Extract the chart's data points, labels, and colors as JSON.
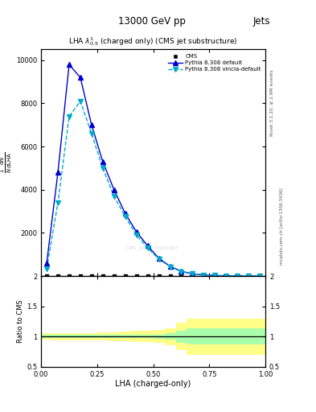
{
  "title_top": "13000 GeV pp",
  "title_right": "Jets",
  "plot_title": "LHA $\\lambda^{1}_{0.5}$ (charged only) (CMS jet substructure)",
  "xlabel": "LHA (charged-only)",
  "ylabel": "$\\frac{1}{N}\\frac{dN}{d\\mathrm{LHA}}$",
  "ratio_ylabel": "Ratio to CMS",
  "right_label_top": "Rivet 3.1.10, ≥ 2.9M events",
  "right_label_bot": "mcplots.cern.ch [arXiv:1306.3436]",
  "cms_watermark": "CMS_2021_I1920187",
  "pythia_default_x": [
    0.025,
    0.075,
    0.125,
    0.175,
    0.225,
    0.275,
    0.325,
    0.375,
    0.425,
    0.475,
    0.525,
    0.575,
    0.625,
    0.675,
    0.725,
    0.775,
    0.825,
    0.875,
    0.925,
    0.975
  ],
  "pythia_default_y": [
    600,
    4800,
    9800,
    9200,
    7000,
    5300,
    4000,
    2900,
    2050,
    1400,
    820,
    450,
    220,
    105,
    52,
    26,
    13,
    7,
    3,
    1.5
  ],
  "pythia_vincia_x": [
    0.025,
    0.075,
    0.125,
    0.175,
    0.225,
    0.275,
    0.325,
    0.375,
    0.425,
    0.475,
    0.525,
    0.575,
    0.625,
    0.675,
    0.725,
    0.775,
    0.825,
    0.875,
    0.925,
    0.975
  ],
  "pythia_vincia_y": [
    350,
    3400,
    7400,
    8100,
    6600,
    5000,
    3700,
    2750,
    1900,
    1300,
    780,
    430,
    200,
    95,
    47,
    22,
    11,
    5.5,
    2.5,
    1.2
  ],
  "cms_x": [
    0.025,
    0.075,
    0.125,
    0.175,
    0.225,
    0.275,
    0.325,
    0.375,
    0.425,
    0.475,
    0.525,
    0.575,
    0.625,
    0.675,
    0.725,
    0.775,
    0.825,
    0.875,
    0.925,
    0.975
  ],
  "cms_y": [
    0,
    0,
    0,
    0,
    0,
    0,
    0,
    0,
    0,
    0,
    0,
    0,
    0,
    0,
    0,
    0,
    0,
    0,
    0,
    0
  ],
  "bin_edges": [
    0.0,
    0.05,
    0.1,
    0.15,
    0.2,
    0.25,
    0.3,
    0.35,
    0.4,
    0.45,
    0.5,
    0.55,
    0.6,
    0.65,
    0.7,
    0.75,
    0.8,
    0.85,
    0.9,
    0.95,
    1.0
  ],
  "green_band_low": [
    0.975,
    0.975,
    0.975,
    0.975,
    0.975,
    0.975,
    0.975,
    0.975,
    0.97,
    0.97,
    0.965,
    0.95,
    0.9,
    0.87,
    0.87,
    0.87,
    0.87,
    0.87,
    0.87,
    0.87
  ],
  "green_band_high": [
    1.025,
    1.025,
    1.025,
    1.025,
    1.025,
    1.025,
    1.025,
    1.025,
    1.03,
    1.03,
    1.035,
    1.05,
    1.1,
    1.13,
    1.13,
    1.13,
    1.13,
    1.13,
    1.13,
    1.13
  ],
  "yellow_band_low": [
    0.95,
    0.94,
    0.94,
    0.94,
    0.94,
    0.93,
    0.925,
    0.92,
    0.91,
    0.91,
    0.895,
    0.86,
    0.77,
    0.7,
    0.7,
    0.7,
    0.7,
    0.7,
    0.7,
    0.7
  ],
  "yellow_band_high": [
    1.05,
    1.06,
    1.06,
    1.06,
    1.06,
    1.07,
    1.075,
    1.08,
    1.09,
    1.09,
    1.105,
    1.14,
    1.23,
    1.3,
    1.3,
    1.3,
    1.3,
    1.3,
    1.3,
    1.3
  ],
  "color_default": "#0000cc",
  "color_vincia": "#00aacc",
  "color_cms": "#000000",
  "color_green": "#aaffaa",
  "color_yellow": "#ffff88",
  "ylim_main": [
    0,
    10500
  ],
  "ylim_ratio": [
    0.5,
    2.0
  ],
  "xlim": [
    0.0,
    1.0
  ],
  "yticks_main": [
    2000,
    4000,
    6000,
    8000,
    10000
  ],
  "ytick_labels_main": [
    "2000",
    "4000",
    "6000",
    "8000",
    "10000"
  ],
  "yticks_ratio": [
    0.5,
    1.0,
    1.5,
    2.0
  ],
  "ytick_labels_ratio": [
    "0.5",
    "1",
    "1.5",
    "2"
  ],
  "xticks": [
    0.0,
    0.25,
    0.5,
    0.75,
    1.0
  ],
  "background_color": "#ffffff"
}
